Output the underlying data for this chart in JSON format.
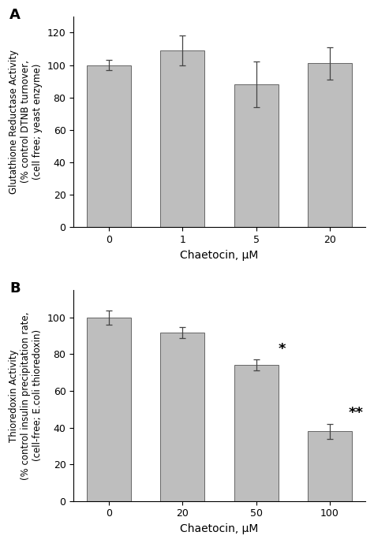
{
  "panel_A": {
    "categories": [
      "0",
      "1",
      "5",
      "20"
    ],
    "values": [
      100,
      109,
      88,
      101
    ],
    "errors": [
      3,
      9,
      14,
      10
    ],
    "ylabel_l1": "Glutathione Reductase Activity",
    "ylabel_l2": "(% control DTNB turnover,",
    "ylabel_l3": "(cell free; yeast enzyme)",
    "xlabel": "Chaetocin, μM",
    "ylim": [
      0,
      130
    ],
    "yticks": [
      0,
      20,
      40,
      60,
      80,
      100,
      120
    ],
    "label": "A",
    "sig_labels": [
      "",
      "",
      "",
      ""
    ]
  },
  "panel_B": {
    "categories": [
      "0",
      "20",
      "50",
      "100"
    ],
    "values": [
      100,
      92,
      74,
      38
    ],
    "errors": [
      4,
      3,
      3,
      4
    ],
    "ylabel_l1": "Thioredoxin Activity",
    "ylabel_l2": "(% control insulin precipitation rate,",
    "ylabel_l3": "(cell-free; E.coli thioredoxin)",
    "xlabel": "Chaetocin, μM",
    "ylim": [
      0,
      115
    ],
    "yticks": [
      0,
      20,
      40,
      60,
      80,
      100
    ],
    "label": "B",
    "sig_labels": [
      "",
      "",
      "*",
      "**"
    ]
  },
  "bar_color": "#bebebe",
  "bar_edgecolor": "#666666",
  "bar_width": 0.6,
  "capsize": 3,
  "error_color": "#444444",
  "background_color": "#ffffff",
  "label_fontsize": 13,
  "tick_fontsize": 9,
  "ylabel_fontsize": 8.5,
  "xlabel_fontsize": 10,
  "sig_fontsize": 13
}
